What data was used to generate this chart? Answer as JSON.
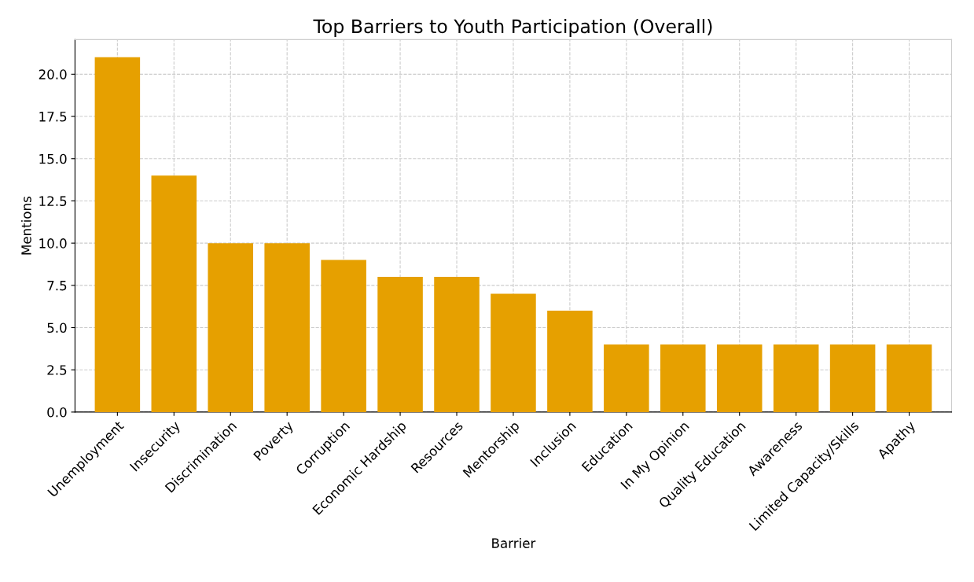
{
  "chart_data": {
    "type": "bar",
    "title": "Top Barriers to Youth Participation (Overall)",
    "xlabel": "Barrier",
    "ylabel": "Mentions",
    "categories": [
      "Unemployment",
      "Insecurity",
      "Discrimination",
      "Poverty",
      "Corruption",
      "Economic Hardship",
      "Resources",
      "Mentorship",
      "Inclusion",
      "Education",
      "In My Opinion",
      "Quality Education",
      "Awareness",
      "Limited Capacity/Skills",
      "Apathy"
    ],
    "values": [
      21,
      14,
      10,
      10,
      9,
      8,
      8,
      7,
      6,
      4,
      4,
      4,
      4,
      4,
      4
    ],
    "color": "#e6a000",
    "ylim": [
      0,
      22.05
    ],
    "yticks": [
      {
        "value": 0,
        "label": "0.0"
      },
      {
        "value": 2.5,
        "label": "2.5"
      },
      {
        "value": 5,
        "label": "5.0"
      },
      {
        "value": 7.5,
        "label": "7.5"
      },
      {
        "value": 10,
        "label": "10.0"
      },
      {
        "value": 12.5,
        "label": "12.5"
      },
      {
        "value": 15,
        "label": "15.0"
      },
      {
        "value": 17.5,
        "label": "17.5"
      },
      {
        "value": 20,
        "label": "20.0"
      }
    ],
    "grid": true,
    "line_style": "dashed"
  }
}
